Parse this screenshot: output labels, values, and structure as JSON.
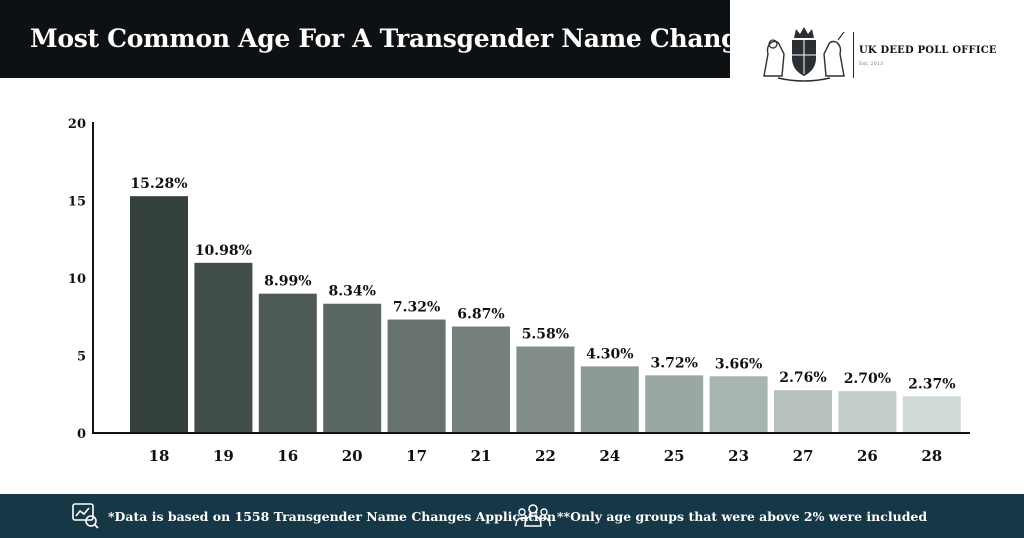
{
  "header": {
    "title": "Most Common Age For A Transgender Name Change."
  },
  "logo": {
    "name": "UK DEED POLL OFFICE",
    "sub": "Est. 2013"
  },
  "colors": {
    "title_bg": "#0e1114",
    "footer_bg": "#163746",
    "bar_dark": "#34403d",
    "bar_light": "#cfdad9"
  },
  "chart_data": {
    "type": "bar",
    "categories": [
      "18",
      "19",
      "16",
      "20",
      "17",
      "21",
      "22",
      "24",
      "25",
      "23",
      "27",
      "26",
      "28"
    ],
    "values": [
      15.28,
      10.98,
      8.99,
      8.34,
      7.32,
      6.87,
      5.58,
      4.3,
      3.72,
      3.66,
      2.76,
      2.7,
      2.37
    ],
    "data_labels": [
      "15.28%",
      "10.98%",
      "8.99%",
      "8.34%",
      "7.32%",
      "6.87%",
      "5.58%",
      "4.30%",
      "3.72%",
      "3.66%",
      "2.76%",
      "2.70%",
      "2.37%"
    ],
    "yticks": [
      "0",
      "5",
      "10",
      "15",
      "20"
    ],
    "ylim": [
      0,
      20
    ],
    "grid": false,
    "title": "Most Common Age For A Transgender Name Change."
  },
  "footer": {
    "note1": "*Data is based on 1558 Transgender Name Changes Application",
    "note2": "**Only age groups that were above 2% were included",
    "icon1": "report-chart-icon",
    "icon2": "people-group-icon"
  }
}
